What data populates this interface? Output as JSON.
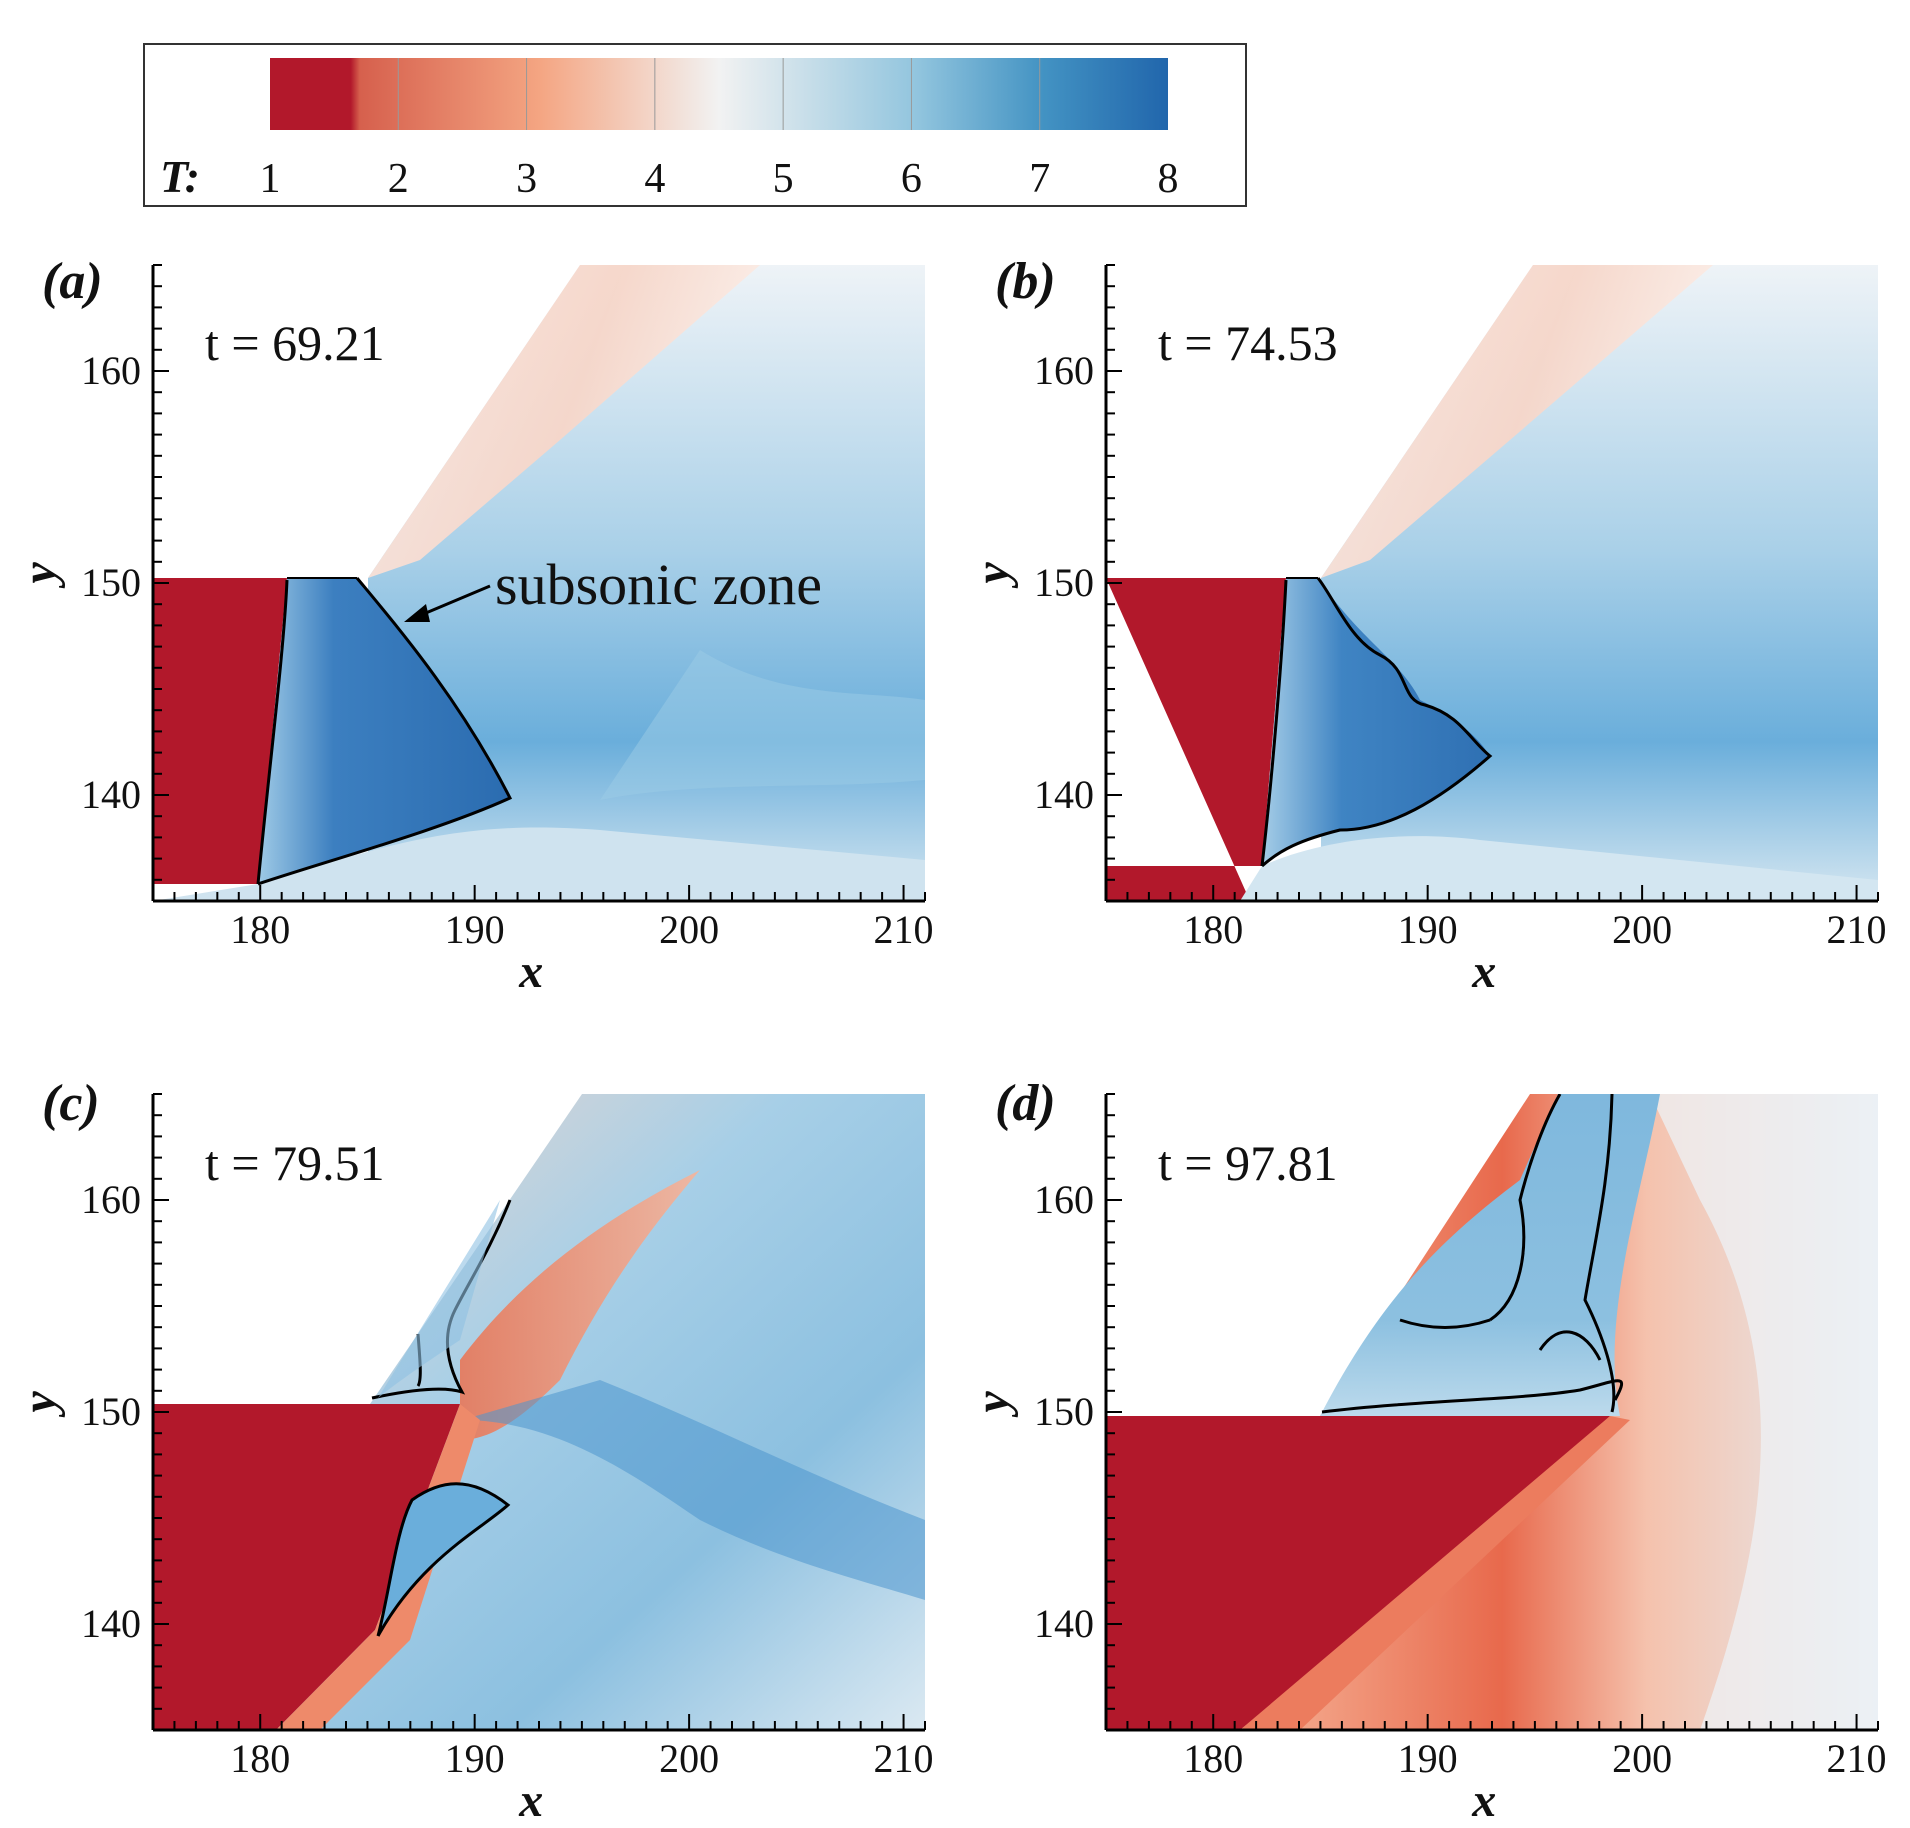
{
  "figure": {
    "colorbar": {
      "variable": "T:",
      "ticks": [
        "1",
        "2",
        "3",
        "4",
        "5",
        "6",
        "7",
        "8"
      ],
      "colors": [
        "#b2182b",
        "#d6604d",
        "#f4a582",
        "#fbe1d2",
        "#f2f2f2",
        "#c7e0ef",
        "#6baed6",
        "#2166ac"
      ]
    },
    "annotation": "subsonic zone"
  },
  "chart_data": [
    {
      "type": "heatmap",
      "panel": "(a)",
      "title": "t = 69.21",
      "xlabel": "x",
      "ylabel": "y",
      "xlim": [
        175,
        211
      ],
      "ylim": [
        135,
        165
      ],
      "xticks": [
        "180",
        "190",
        "200",
        "210"
      ],
      "yticks": [
        "140",
        "150",
        "160"
      ],
      "colorbar_range": [
        1,
        8
      ]
    },
    {
      "type": "heatmap",
      "panel": "(b)",
      "title": "t = 74.53",
      "xlabel": "x",
      "ylabel": "y",
      "xlim": [
        175,
        211
      ],
      "ylim": [
        135,
        165
      ],
      "xticks": [
        "180",
        "190",
        "200",
        "210"
      ],
      "yticks": [
        "140",
        "150",
        "160"
      ],
      "colorbar_range": [
        1,
        8
      ]
    },
    {
      "type": "heatmap",
      "panel": "(c)",
      "title": "t = 79.51",
      "xlabel": "x",
      "ylabel": "y",
      "xlim": [
        175,
        211
      ],
      "ylim": [
        135,
        165
      ],
      "xticks": [
        "180",
        "190",
        "200",
        "210"
      ],
      "yticks": [
        "140",
        "150",
        "160"
      ],
      "colorbar_range": [
        1,
        8
      ]
    },
    {
      "type": "heatmap",
      "panel": "(d)",
      "title": "t = 97.81",
      "xlabel": "x",
      "ylabel": "y",
      "xlim": [
        175,
        211
      ],
      "ylim": [
        135,
        165
      ],
      "xticks": [
        "180",
        "190",
        "200",
        "210"
      ],
      "yticks": [
        "140",
        "150",
        "160"
      ],
      "colorbar_range": [
        1,
        8
      ]
    }
  ]
}
